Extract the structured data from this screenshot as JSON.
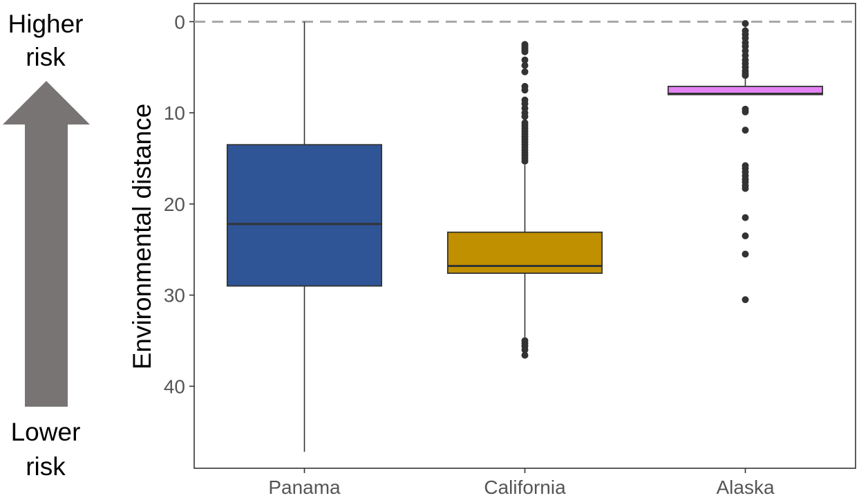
{
  "annotations": {
    "top_line1": "Higher",
    "top_line2": "risk",
    "bottom_line1": "Lower",
    "bottom_line2": "risk",
    "arrow_color": "#787474"
  },
  "chart_data": {
    "type": "box",
    "title": "",
    "xlabel": "",
    "ylabel": "Environmental distance",
    "y_reversed": true,
    "ylim": [
      -2,
      49
    ],
    "yticks": [
      0,
      10,
      20,
      30,
      40
    ],
    "grid": false,
    "reference_line": {
      "y": 0,
      "style": "dashed",
      "color": "#a6a6a6"
    },
    "categories": [
      "Panama",
      "California",
      "Alaska"
    ],
    "series": [
      {
        "category": "Panama",
        "color": "#2f5596",
        "whisker_low": 0,
        "q1": 13.5,
        "median": 22.2,
        "q3": 29.0,
        "whisker_high": 47.2,
        "outliers": []
      },
      {
        "category": "California",
        "color": "#c09000",
        "whisker_low": 15.7,
        "q1": 23.1,
        "median": 26.8,
        "q3": 27.6,
        "whisker_high": 34.6,
        "outliers": [
          2.5,
          2.7,
          2.9,
          3.1,
          3.3,
          4.2,
          4.8,
          5.5,
          7.1,
          7.5,
          8.6,
          9.0,
          9.5,
          10.0,
          10.4,
          11.1,
          11.4,
          11.7,
          12.0,
          12.3,
          12.6,
          12.9,
          13.2,
          13.5,
          13.8,
          14.1,
          14.4,
          14.7,
          15.0,
          15.3,
          35.0,
          35.3,
          35.6,
          36.0,
          36.6
        ]
      },
      {
        "category": "Alaska",
        "color": "#e484f4",
        "whisker_low": 0,
        "q1": 7.1,
        "median": 7.9,
        "q3": 8.0,
        "whisker_high": 8.0,
        "outliers": [
          0.2,
          1.0,
          1.4,
          1.8,
          2.3,
          2.7,
          3.2,
          3.7,
          4.2,
          4.6,
          5.0,
          5.4,
          5.7,
          5.9,
          9.6,
          9.9,
          11.9,
          15.8,
          16.1,
          16.5,
          16.9,
          17.3,
          17.6,
          18.0,
          18.3,
          21.5,
          23.5,
          25.5,
          30.5
        ]
      }
    ]
  }
}
